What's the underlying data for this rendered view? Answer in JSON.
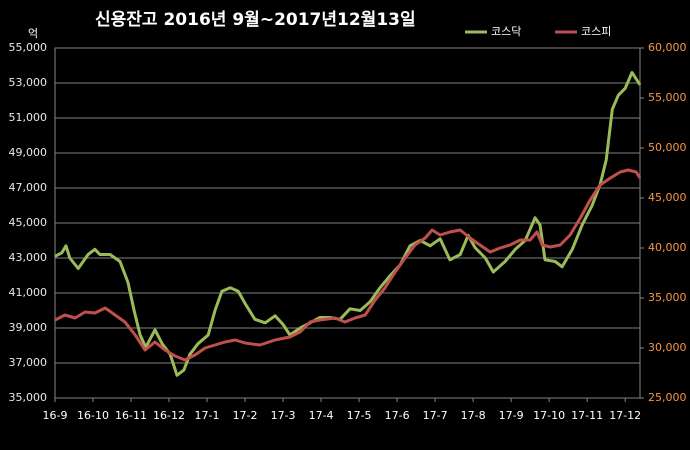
{
  "chart_data": {
    "type": "line",
    "title": "신용잔고 2016년 9월~2017년12월13일",
    "y_unit": "억",
    "xlim": [
      0,
      15.39
    ],
    "xticks": [
      {
        "value": 0,
        "label": "16-9"
      },
      {
        "value": 1,
        "label": "16-10"
      },
      {
        "value": 2,
        "label": "16-11"
      },
      {
        "value": 3,
        "label": "16-12"
      },
      {
        "value": 4,
        "label": "17-1"
      },
      {
        "value": 5,
        "label": "17-2"
      },
      {
        "value": 6,
        "label": "17-3"
      },
      {
        "value": 7,
        "label": "17-4"
      },
      {
        "value": 8,
        "label": "17-5"
      },
      {
        "value": 9,
        "label": "17-6"
      },
      {
        "value": 10,
        "label": "17-7"
      },
      {
        "value": 11,
        "label": "17-8"
      },
      {
        "value": 12,
        "label": "17-9"
      },
      {
        "value": 13,
        "label": "17-10"
      },
      {
        "value": 14,
        "label": "17-11"
      },
      {
        "value": 15,
        "label": "17-12"
      }
    ],
    "ylim": [
      35000,
      55000
    ],
    "yticks": [
      {
        "value": 35000,
        "label": "35,000"
      },
      {
        "value": 37000,
        "label": "37,000"
      },
      {
        "value": 39000,
        "label": "39,000"
      },
      {
        "value": 41000,
        "label": "41,000"
      },
      {
        "value": 43000,
        "label": "43,000"
      },
      {
        "value": 45000,
        "label": "45,000"
      },
      {
        "value": 47000,
        "label": "47,000"
      },
      {
        "value": 49000,
        "label": "49,000"
      },
      {
        "value": 51000,
        "label": "51,000"
      },
      {
        "value": 53000,
        "label": "53,000"
      },
      {
        "value": 55000,
        "label": "55,000"
      }
    ],
    "y2lim": [
      25000,
      60000
    ],
    "y2ticks": [
      {
        "value": 25000,
        "label": "25,000"
      },
      {
        "value": 30000,
        "label": "30,000"
      },
      {
        "value": 35000,
        "label": "35,000"
      },
      {
        "value": 40000,
        "label": "40,000"
      },
      {
        "value": 45000,
        "label": "45,000"
      },
      {
        "value": 50000,
        "label": "50,000"
      },
      {
        "value": 55000,
        "label": "55,000"
      },
      {
        "value": 60000,
        "label": "60,000"
      }
    ],
    "grid": true,
    "legend": "top-right",
    "series": [
      {
        "name": "코스닥",
        "color": "#9bbb59",
        "axis": "y",
        "x": [
          0,
          0.18,
          0.29,
          0.39,
          0.61,
          0.87,
          1.05,
          1.18,
          1.45,
          1.71,
          1.92,
          2.08,
          2.24,
          2.39,
          2.63,
          2.82,
          3.03,
          3.21,
          3.39,
          3.55,
          3.76,
          4.03,
          4.21,
          4.39,
          4.61,
          4.82,
          5,
          5.26,
          5.53,
          5.79,
          6,
          6.18,
          6.45,
          6.71,
          6.97,
          7.24,
          7.5,
          7.76,
          8.03,
          8.29,
          8.55,
          8.82,
          9.08,
          9.34,
          9.61,
          9.87,
          10.13,
          10.39,
          10.66,
          10.87,
          11.05,
          11.32,
          11.53,
          11.84,
          12.11,
          12.37,
          12.63,
          12.76,
          12.89,
          13.16,
          13.34,
          13.61,
          13.87,
          14.13,
          14.34,
          14.5,
          14.66,
          14.82,
          15,
          15.18,
          15.39
        ],
        "values": [
          43100,
          43300,
          43700,
          43000,
          42400,
          43200,
          43500,
          43200,
          43200,
          42800,
          41600,
          40000,
          38600,
          37900,
          38900,
          38100,
          37500,
          36300,
          36600,
          37500,
          38100,
          38600,
          40000,
          41100,
          41300,
          41100,
          40400,
          39500,
          39300,
          39700,
          39200,
          38600,
          39000,
          39300,
          39600,
          39600,
          39500,
          40100,
          40000,
          40500,
          41300,
          42000,
          42600,
          43700,
          44000,
          43700,
          44100,
          42900,
          43200,
          44300,
          43600,
          43000,
          42200,
          42800,
          43500,
          44000,
          45300,
          44900,
          42900,
          42800,
          42500,
          43500,
          44900,
          46000,
          47200,
          48600,
          51500,
          52300,
          52700,
          53600,
          52900
        ]
      },
      {
        "name": "코스피",
        "color": "#c0504d",
        "axis": "y2",
        "x": [
          0,
          0.26,
          0.53,
          0.79,
          1.05,
          1.32,
          1.58,
          1.84,
          2.11,
          2.37,
          2.63,
          2.89,
          3.16,
          3.42,
          3.68,
          3.95,
          4.21,
          4.47,
          4.74,
          5,
          5.39,
          5.79,
          6.18,
          6.45,
          6.71,
          6.97,
          7.37,
          7.63,
          7.89,
          8.16,
          8.42,
          8.68,
          8.95,
          9.21,
          9.47,
          9.74,
          9.92,
          10.13,
          10.39,
          10.66,
          10.92,
          11.18,
          11.45,
          11.71,
          11.97,
          12.24,
          12.5,
          12.68,
          12.82,
          13.03,
          13.29,
          13.55,
          13.82,
          14.08,
          14.34,
          14.61,
          14.87,
          15.08,
          15.29,
          15.39
        ],
        "values": [
          32800,
          33300,
          33000,
          33600,
          33500,
          34000,
          33300,
          32600,
          31300,
          29800,
          30600,
          29800,
          29200,
          28800,
          29300,
          30000,
          30300,
          30600,
          30800,
          30500,
          30300,
          30800,
          31100,
          31600,
          32600,
          32800,
          33000,
          32600,
          33000,
          33300,
          34800,
          36000,
          37600,
          39000,
          40300,
          41000,
          41800,
          41300,
          41600,
          41800,
          41000,
          40300,
          39600,
          40000,
          40300,
          40800,
          40800,
          41600,
          40300,
          40100,
          40300,
          41300,
          43000,
          44800,
          46300,
          47000,
          47600,
          47800,
          47600,
          47000
        ]
      }
    ]
  }
}
